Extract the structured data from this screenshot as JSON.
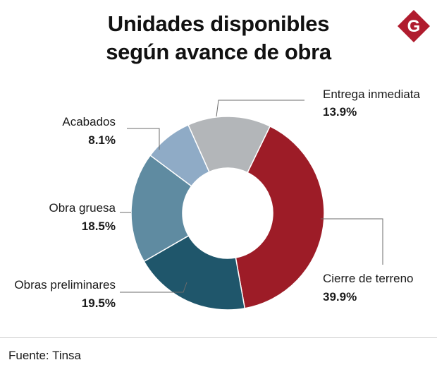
{
  "header": {
    "title_line1": "Unidades disponibles",
    "title_line2": "según avance de obra",
    "logo_letter": "G"
  },
  "chart_data": {
    "type": "pie",
    "donut": true,
    "categories": [
      "Cierre de terreno",
      "Obras preliminares",
      "Obra gruesa",
      "Acabados",
      "Entrega inmediata"
    ],
    "values": [
      39.9,
      19.5,
      18.5,
      8.1,
      13.9
    ],
    "value_labels": [
      "39.9%",
      "19.5%",
      "18.5%",
      "8.1%",
      "13.9%"
    ],
    "colors": [
      "#9d1c27",
      "#1f566b",
      "#5f8ba1",
      "#8fabc6",
      "#b3b6b9"
    ],
    "unit": "%"
  },
  "footer": {
    "source": "Fuente: Tinsa"
  },
  "colors": {
    "logo_red": "#b01c2e"
  }
}
